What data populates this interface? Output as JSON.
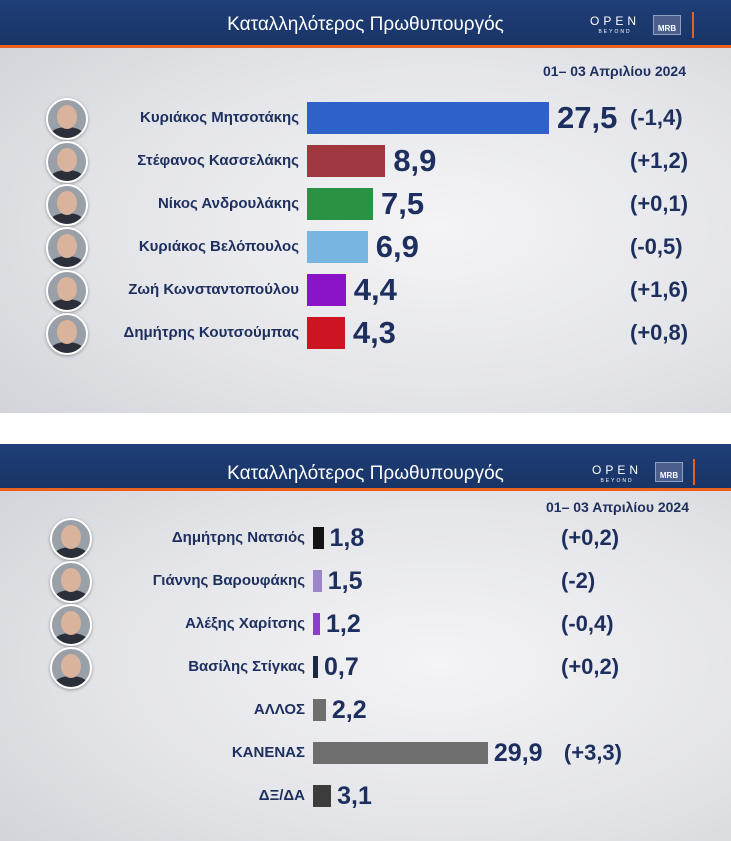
{
  "panels": [
    {
      "title": "Καταλληλότερος Πρωθυπουργός",
      "date": "01– 03 Απριλίου 2024",
      "logo_open": "OPEN",
      "logo_sub": "BEYOND",
      "logo_mrb": "MRB"
    },
    {
      "title": "Καταλληλότερος Πρωθυπουργός",
      "date": "01– 03 Απριλίου 2024",
      "logo_open": "OPEN",
      "logo_sub": "BEYOND",
      "logo_mrb": "MRB"
    }
  ],
  "chart_data": [
    {
      "type": "bar",
      "orientation": "horizontal",
      "title": "Καταλληλότερος Πρωθυπουργός",
      "categories": [
        "Κυριάκος Μητσοτάκης",
        "Στέφανος Κασσελάκης",
        "Νίκος Ανδρουλάκης",
        "Κυριάκος Βελόπουλος",
        "Ζωή Κωνσταντοπούλου",
        "Δημήτρης Κουτσούμπας"
      ],
      "values": [
        27.5,
        8.9,
        7.5,
        6.9,
        4.4,
        4.3
      ],
      "value_labels": [
        "27,5",
        "8,9",
        "7,5",
        "6,9",
        "4,4",
        "4,3"
      ],
      "changes": [
        "(-1,4)",
        "(+1,2)",
        "(+0,1)",
        "(-0,5)",
        "(+1,6)",
        "(+0,8)"
      ],
      "colors": [
        "#2f62c8",
        "#a0383f",
        "#2a9243",
        "#78b5e0",
        "#8b14c8",
        "#cc1422"
      ],
      "has_photo": [
        true,
        true,
        true,
        true,
        true,
        true
      ]
    },
    {
      "type": "bar",
      "orientation": "horizontal",
      "title": "Καταλληλότερος Πρωθυπουργός",
      "categories": [
        "Δημήτρης Νατσιός",
        "Γιάννης Βαρουφάκης",
        "Αλέξης Χαρίτσης",
        "Βασίλης Στίγκας",
        "ΑΛΛΟΣ",
        "ΚΑΝΕΝΑΣ",
        "ΔΞ/ΔΑ"
      ],
      "values": [
        1.8,
        1.5,
        1.2,
        0.7,
        2.2,
        29.9,
        3.1
      ],
      "value_labels": [
        "1,8",
        "1,5",
        "1,2",
        "0,7",
        "2,2",
        "29,9",
        "3,1"
      ],
      "changes": [
        "(+0,2)",
        "(-2)",
        "(-0,4)",
        "(+0,2)",
        "",
        "(+3,3)",
        ""
      ],
      "colors": [
        "#141414",
        "#9a86c8",
        "#8a3fc8",
        "#1a2a3f",
        "#6e6e6e",
        "#6e6e6e",
        "#3c3c3c"
      ],
      "has_photo": [
        true,
        true,
        true,
        true,
        false,
        false,
        false
      ]
    }
  ]
}
